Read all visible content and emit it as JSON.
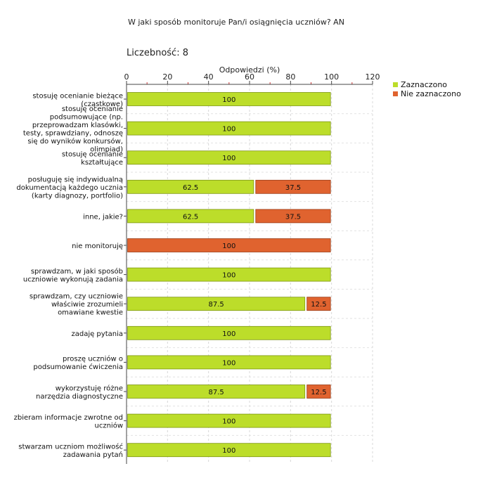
{
  "chart_data": {
    "type": "bar",
    "orientation": "horizontal",
    "stacked": true,
    "title": "W jaki sposób monitoruje Pan/i osiągnięcia uczniów?  AN",
    "count_label": "Liczebność: 8",
    "xlabel": "Odpowiedzi (%)",
    "xlim": [
      0,
      120
    ],
    "xticks": [
      0,
      20,
      40,
      60,
      80,
      100,
      120
    ],
    "grid": true,
    "legend_position": "top-right",
    "categories": [
      [
        "stosuję ocenianie bieżące",
        "(cząstkowe)"
      ],
      [
        "stosuję ocenianie",
        "podsumowujące (np.",
        "przeprowadzam klasówki,",
        "testy, sprawdziany, odnoszę",
        "się do wyników konkursów,",
        "olimpiad)"
      ],
      [
        "stosuję ocenianie",
        "kształtujące"
      ],
      [
        "posługuję się indywidualną",
        "dokumentacją każdego ucznia",
        "(karty diagnozy, portfolio)"
      ],
      [
        "inne, jakie?"
      ],
      [
        "nie monitoruję"
      ],
      [
        "sprawdzam, w jaki sposób",
        "uczniowie wykonują zadania"
      ],
      [
        "sprawdzam, czy uczniowie",
        "właściwie zrozumieli",
        "omawiane kwestie"
      ],
      [
        "zadaję pytania"
      ],
      [
        "proszę uczniów o",
        "podsumowanie ćwiczenia"
      ],
      [
        "wykorzystuję różne",
        "narzędzia diagnostyczne"
      ],
      [
        "zbieram informacje zwrotne od",
        "uczniów"
      ],
      [
        "stwarzam uczniom możliwość",
        "zadawania pytań"
      ]
    ],
    "series": [
      {
        "name": "Zaznaczono",
        "color": "#bcdd2a",
        "values": [
          100,
          100,
          100,
          62.5,
          62.5,
          0,
          100,
          87.5,
          100,
          100,
          87.5,
          100,
          100
        ]
      },
      {
        "name": "Nie zaznaczono",
        "color": "#e0632f",
        "values": [
          0,
          0,
          0,
          37.5,
          37.5,
          100,
          0,
          12.5,
          0,
          0,
          12.5,
          0,
          0
        ]
      }
    ]
  }
}
